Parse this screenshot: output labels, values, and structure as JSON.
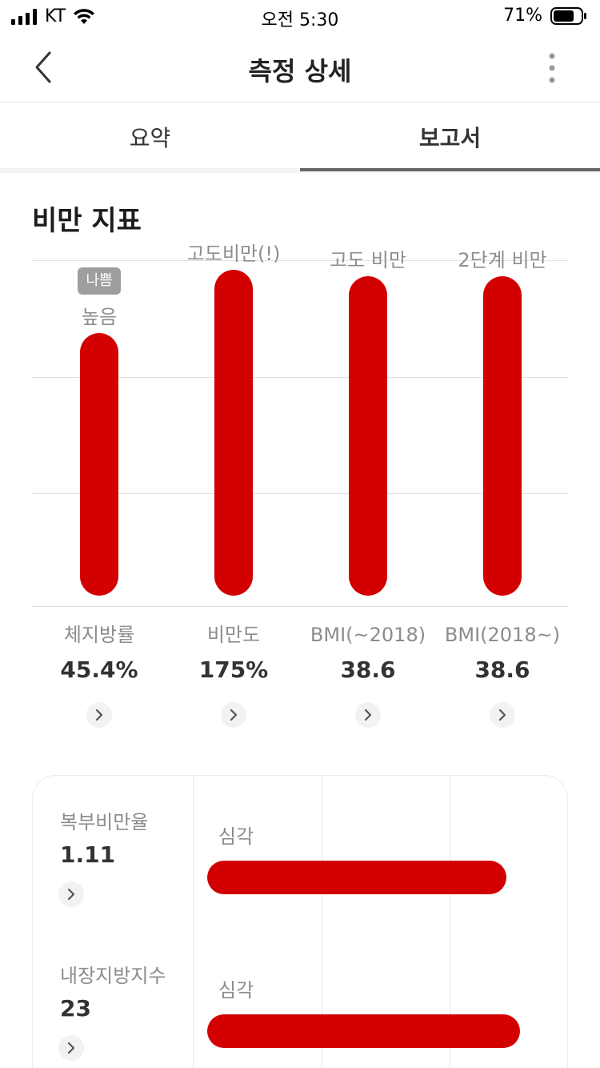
{
  "status_bar": {
    "carrier": "KT",
    "time": "오전 5:30",
    "battery_percent": "71%"
  },
  "nav": {
    "title": "측정 상세",
    "back_icon": "chevron-left-icon",
    "more_icon": "more-vertical-icon"
  },
  "tabs": [
    {
      "label": "요약",
      "active": false
    },
    {
      "label": "보고서",
      "active": true
    }
  ],
  "section": {
    "title": "비만 지표"
  },
  "colors": {
    "bar": "#d20000",
    "badge": "#9e9e9e",
    "tab_indicator": "#666666"
  },
  "chart_data": {
    "type": "bar",
    "categories": [
      "체지방률",
      "비만도",
      "BMI(~2018)",
      "BMI(2018~)"
    ],
    "level_labels": [
      "높음",
      "고도비만(!)",
      "고도 비만",
      "2단계 비만"
    ],
    "badge": {
      "category_index": 0,
      "label": "나쁨"
    },
    "values_display": [
      "45.4%",
      "175%",
      "38.6",
      "38.6"
    ],
    "relative_fill": [
      0.78,
      0.97,
      0.95,
      0.95
    ],
    "grid": true
  },
  "metrics": [
    {
      "name": "체지방률",
      "value": "45.4%"
    },
    {
      "name": "비만도",
      "value": "175%"
    },
    {
      "name": "BMI(~2018)",
      "value": "38.6"
    },
    {
      "name": "BMI(2018~)",
      "value": "38.6"
    }
  ],
  "detail_rows": [
    {
      "name": "복부비만율",
      "value": "1.11",
      "level": "심각",
      "fill": 0.87
    },
    {
      "name": "내장지방지수",
      "value": "23",
      "level": "심각",
      "fill": 0.91
    }
  ]
}
